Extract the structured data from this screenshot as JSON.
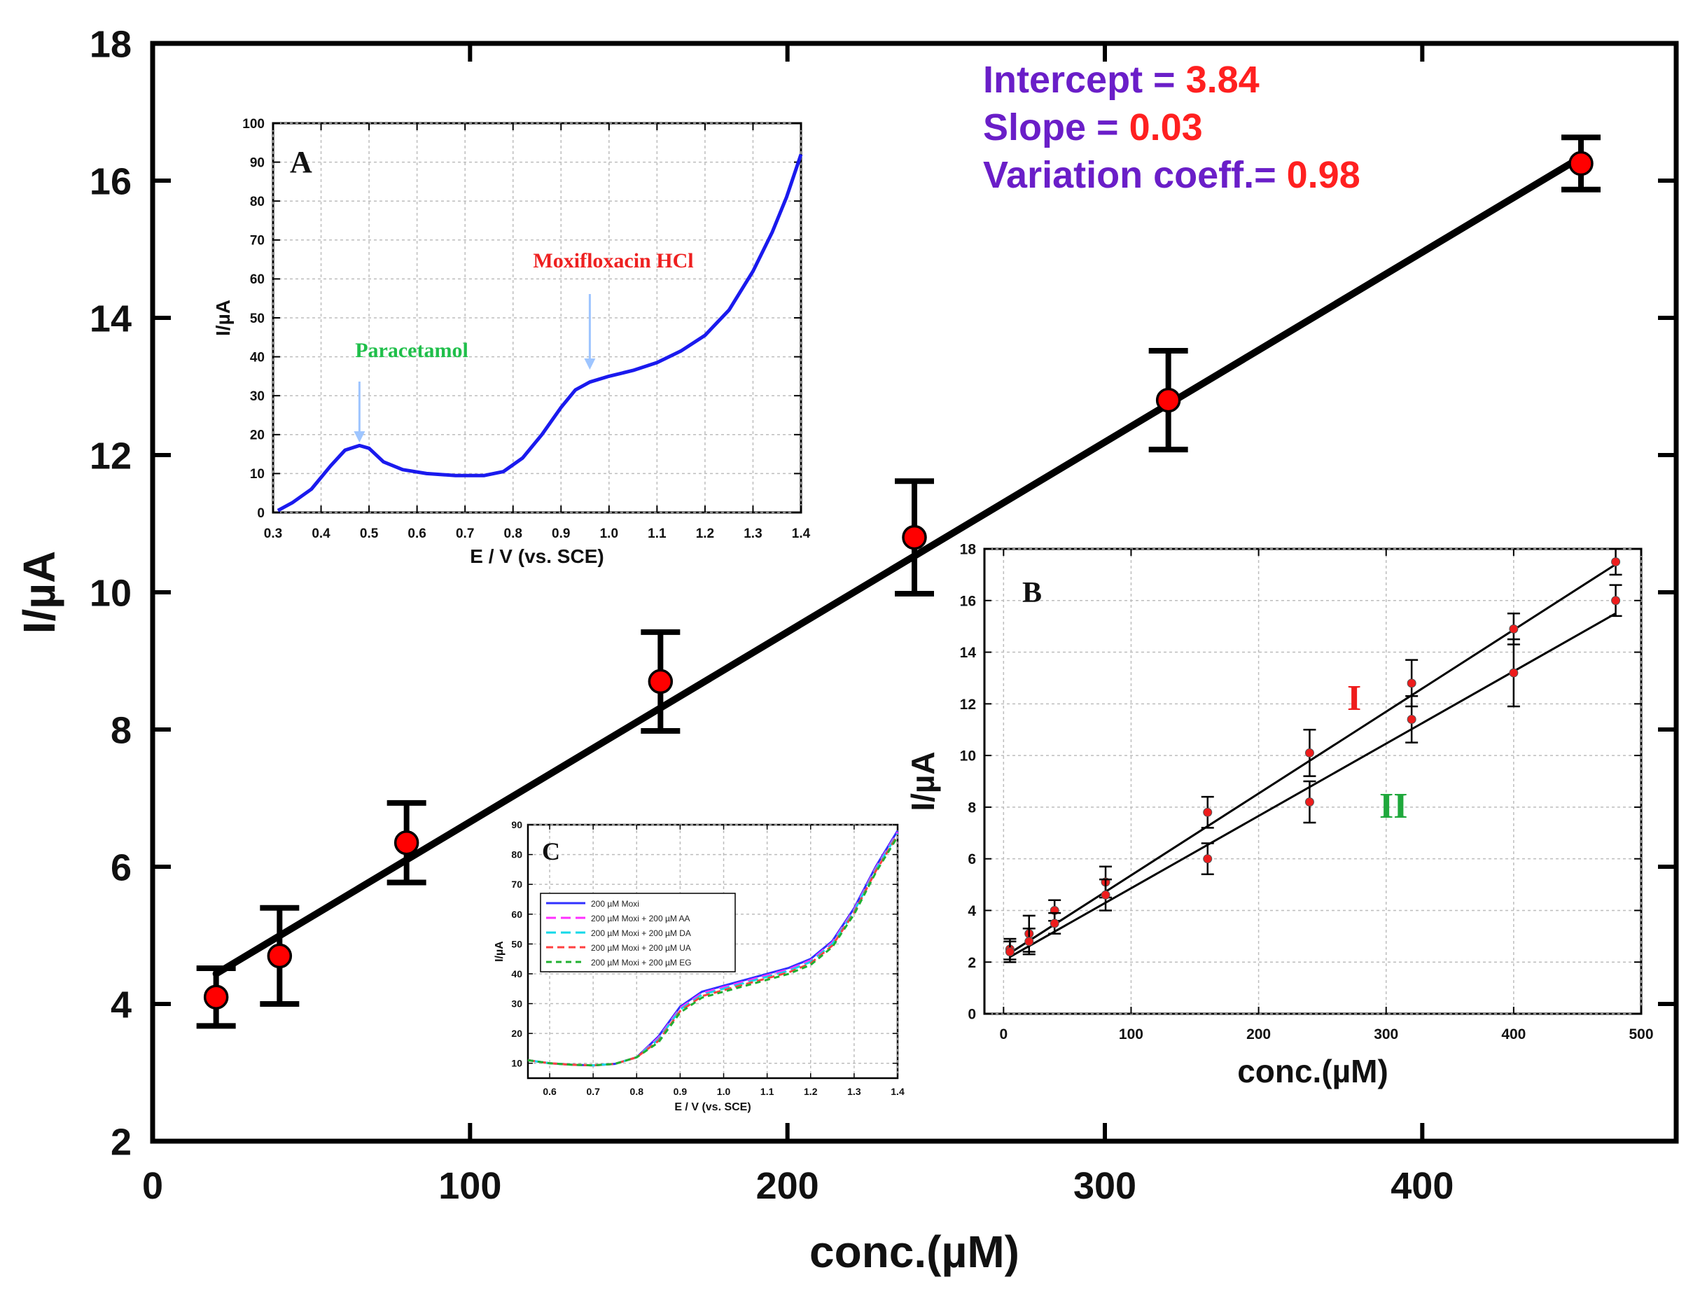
{
  "chart_data": [
    {
      "id": "main",
      "type": "scatter",
      "xlabel": "conc.(µM)",
      "ylabel": "I/µA",
      "xlim": [
        0,
        480
      ],
      "ylim": [
        2,
        18
      ],
      "xticks": [
        "0",
        "100",
        "200",
        "300",
        "400"
      ],
      "yticks": [
        "2",
        "4",
        "6",
        "8",
        "10",
        "12",
        "14",
        "16",
        "18"
      ],
      "x": [
        20,
        40,
        80,
        160,
        240,
        320,
        450
      ],
      "y": [
        4.1,
        4.7,
        6.35,
        8.7,
        10.8,
        12.8,
        16.25
      ],
      "error": [
        0.42,
        0.7,
        0.58,
        0.72,
        0.82,
        0.72,
        0.38
      ],
      "fit": {
        "x": [
          20,
          450
        ],
        "y": [
          4.44,
          16.34
        ]
      },
      "point_color": "#ff0000",
      "line_color": "#000000",
      "annotations": [
        {
          "label": "Intercept = ",
          "value": "3.84"
        },
        {
          "label": "Slope       = ",
          "value": "0.03"
        },
        {
          "label": "Variation coeff.= ",
          "value": "0.98"
        }
      ],
      "label_color": "#6a1ec8",
      "value_color": "#ff2020"
    },
    {
      "id": "inset_a",
      "type": "line",
      "panel_label": "A",
      "xlabel": "E / V (vs. SCE)",
      "ylabel": "I/µA",
      "xlim": [
        0.3,
        1.4
      ],
      "ylim": [
        0,
        100
      ],
      "xticks": [
        "0.3",
        "0.4",
        "0.5",
        "0.6",
        "0.7",
        "0.8",
        "0.9",
        "1.0",
        "1.1",
        "1.2",
        "1.3",
        "1.4"
      ],
      "yticks": [
        "0",
        "10",
        "20",
        "30",
        "40",
        "50",
        "60",
        "70",
        "80",
        "90",
        "100"
      ],
      "x": [
        0.31,
        0.34,
        0.38,
        0.42,
        0.45,
        0.48,
        0.5,
        0.53,
        0.57,
        0.62,
        0.68,
        0.74,
        0.78,
        0.82,
        0.86,
        0.9,
        0.93,
        0.96,
        1.0,
        1.05,
        1.1,
        1.15,
        1.2,
        1.25,
        1.3,
        1.34,
        1.37,
        1.4
      ],
      "y": [
        0.5,
        2.5,
        6,
        12,
        16,
        17.2,
        16.5,
        13,
        11,
        10,
        9.5,
        9.5,
        10.5,
        14,
        20,
        27,
        31.5,
        33.5,
        35,
        36.5,
        38.5,
        41.5,
        45.5,
        52,
        62,
        72,
        81,
        92
      ],
      "line_color": "#1a1aee",
      "annotations": [
        {
          "label": "Paracetamol",
          "x": 0.48,
          "color": "#1fbf4a"
        },
        {
          "label": "Moxifloxacin HCl",
          "x": 0.96,
          "color": "#ee2020"
        }
      ]
    },
    {
      "id": "inset_b",
      "type": "scatter",
      "panel_label": "B",
      "xlabel": "conc.(µM)",
      "ylabel": "I/µA",
      "xlim": [
        -15,
        500
      ],
      "ylim": [
        0,
        18
      ],
      "xticks": [
        "0",
        "100",
        "200",
        "300",
        "400",
        "500"
      ],
      "yticks": [
        "0",
        "2",
        "4",
        "6",
        "8",
        "10",
        "12",
        "14",
        "16",
        "18"
      ],
      "series": [
        {
          "name": "I",
          "color": "#ee1c1c",
          "x": [
            5,
            20,
            40,
            80,
            160,
            240,
            320,
            400,
            480
          ],
          "y": [
            2.5,
            3.1,
            4.0,
            5.1,
            7.8,
            10.1,
            12.8,
            14.9,
            17.5
          ],
          "error": [
            0.4,
            0.7,
            0.4,
            0.6,
            0.6,
            0.9,
            0.9,
            0.6,
            0.5
          ],
          "fit": {
            "x": [
              5,
              480
            ],
            "y": [
              2.35,
              17.4
            ]
          }
        },
        {
          "name": "II",
          "color": "#1fa83c",
          "x": [
            5,
            20,
            40,
            80,
            160,
            240,
            320,
            400,
            480
          ],
          "y": [
            2.4,
            2.8,
            3.5,
            4.6,
            6.0,
            8.2,
            11.4,
            13.2,
            16.0
          ],
          "error": [
            0.4,
            0.5,
            0.4,
            0.6,
            0.6,
            0.8,
            0.9,
            1.3,
            0.6
          ],
          "fit": {
            "x": [
              5,
              480
            ],
            "y": [
              2.2,
              15.5
            ]
          }
        }
      ]
    },
    {
      "id": "inset_c",
      "type": "line",
      "panel_label": "C",
      "xlabel": "E / V (vs. SCE)",
      "ylabel": "I/µA",
      "xlim": [
        0.55,
        1.4
      ],
      "ylim": [
        5,
        90
      ],
      "xticks": [
        "0.6",
        "0.7",
        "0.8",
        "0.9",
        "1.0",
        "1.1",
        "1.2",
        "1.3",
        "1.4"
      ],
      "yticks": [
        "10",
        "20",
        "30",
        "40",
        "50",
        "60",
        "70",
        "80",
        "90"
      ],
      "x": [
        0.55,
        0.6,
        0.65,
        0.7,
        0.75,
        0.8,
        0.85,
        0.9,
        0.95,
        1.0,
        1.05,
        1.1,
        1.15,
        1.2,
        1.25,
        1.3,
        1.35,
        1.4
      ],
      "series": [
        {
          "name": "200 µM Moxi",
          "color": "#3030ff",
          "dash": "",
          "y": [
            11,
            10,
            9.5,
            9.3,
            9.8,
            12,
            19,
            29,
            34,
            36,
            38,
            40,
            42,
            45,
            51,
            62,
            76,
            88
          ]
        },
        {
          "name": "200 µM Moxi + 200 µM AA",
          "color": "#ff30ff",
          "dash": "14 7",
          "y": [
            11,
            10,
            9.5,
            9.3,
            9.8,
            12,
            18.5,
            28.5,
            33.5,
            35.5,
            37.5,
            39.5,
            41.5,
            44.5,
            50.5,
            61.5,
            75.5,
            87.5
          ]
        },
        {
          "name": "200 µM Moxi + 200 µM DA",
          "color": "#10d8e8",
          "dash": "14 7",
          "y": [
            11,
            10,
            9.5,
            9.3,
            9.8,
            12,
            18,
            28,
            33,
            35,
            37,
            39,
            41,
            44,
            50,
            61,
            75,
            87
          ]
        },
        {
          "name": "200 µM Moxi + 200 µM UA",
          "color": "#ff4040",
          "dash": "10 6",
          "y": [
            11,
            10,
            9.5,
            9.3,
            9.8,
            12,
            17.5,
            27.5,
            32.5,
            34.5,
            36.5,
            38.5,
            40.5,
            43.5,
            49.5,
            60.5,
            74.5,
            86.5
          ]
        },
        {
          "name": "200 µM Moxi + 200 µM EG",
          "color": "#20b030",
          "dash": "8 6",
          "y": [
            11,
            10,
            9.5,
            9.3,
            9.8,
            12,
            17,
            27,
            32,
            34,
            36,
            38,
            40,
            43,
            49,
            60,
            74,
            86
          ]
        }
      ]
    }
  ]
}
